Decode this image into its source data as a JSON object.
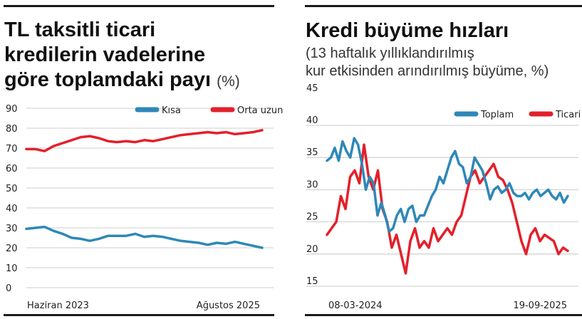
{
  "left_panel": {
    "title_lines": [
      "TL taksitli ticari",
      "kredilerin vadelerine",
      "göre toplamdaki payı"
    ],
    "title_unit": "(%)"
  },
  "right_panel": {
    "title": "Kredi büyüme hızları",
    "subtitle_lines": [
      "(13 haftalık yıllıklandırılmış",
      "kur etkisinden arındırılmış büyüme, %)"
    ]
  },
  "colors": {
    "blue": "#2e88b8",
    "red": "#e3202a",
    "grid": "#bdbdbd",
    "rule": "#1a1a1a"
  },
  "chart_data": [
    {
      "type": "line",
      "title": "TL taksitli ticari kredilerin vadelerine göre toplamdaki payı (%)",
      "xlabel": "",
      "ylabel": "",
      "ylim": [
        0,
        90
      ],
      "yticks": [
        0,
        10,
        20,
        30,
        40,
        50,
        60,
        70,
        80,
        90
      ],
      "x_labels": [
        "Haziran 2023",
        "Ağustos 2025"
      ],
      "x": [
        "2023-06",
        "2023-07",
        "2023-08",
        "2023-09",
        "2023-10",
        "2023-11",
        "2023-12",
        "2024-01",
        "2024-02",
        "2024-03",
        "2024-04",
        "2024-05",
        "2024-06",
        "2024-07",
        "2024-08",
        "2024-09",
        "2024-10",
        "2024-11",
        "2024-12",
        "2025-01",
        "2025-02",
        "2025-03",
        "2025-04",
        "2025-05",
        "2025-06",
        "2025-07",
        "2025-08"
      ],
      "legend_position": "top-right",
      "grid": true,
      "series": [
        {
          "name": "Kısa",
          "color": "#2e88b8",
          "values": [
            29.5,
            30,
            30.5,
            28.5,
            27,
            25,
            24.5,
            23.5,
            24.5,
            26,
            26,
            26,
            27,
            25.5,
            26,
            25.5,
            24.5,
            23.5,
            23,
            22.5,
            21.5,
            22.5,
            22,
            23,
            22,
            21,
            20
          ]
        },
        {
          "name": "Orta uzun",
          "color": "#e3202a",
          "values": [
            69.5,
            69.5,
            68.5,
            71,
            72.5,
            74,
            75.5,
            76,
            75,
            73.5,
            73,
            73.5,
            73,
            74,
            73.5,
            74.5,
            75.5,
            76.5,
            77,
            77.5,
            78,
            77.5,
            78,
            77,
            77.5,
            78,
            79
          ]
        }
      ]
    },
    {
      "type": "line",
      "title": "Kredi büyüme hızları",
      "subtitle": "(13 haftalık yıllıklandırılmış kur etkisinden arındırılmış büyüme, %)",
      "xlabel": "",
      "ylabel": "",
      "ylim": [
        13,
        45
      ],
      "yticks": [
        15,
        20,
        25,
        30,
        35,
        40,
        45
      ],
      "x_labels": [
        "08-03-2024",
        "19-09-2025"
      ],
      "x_start": "2024-03-08",
      "x_end": "2025-09-19",
      "legend_position": "top-right",
      "grid": true,
      "series": [
        {
          "name": "Toplam",
          "color": "#2e88b8",
          "values": [
            34.5,
            35,
            36.5,
            34.5,
            37.5,
            36,
            35,
            38,
            37,
            34,
            30,
            32,
            31,
            26,
            28,
            26,
            23.5,
            24,
            26,
            27,
            25,
            27,
            27.5,
            25,
            26,
            26,
            27.5,
            29,
            30,
            32,
            31,
            33,
            35,
            36,
            34,
            33.5,
            31,
            32,
            35,
            34,
            33,
            31,
            28.5,
            30,
            30.5,
            29.5,
            30,
            31,
            29.5,
            29,
            29,
            29.5,
            28.5,
            29.5,
            30,
            29,
            29.5,
            30,
            29,
            28.5,
            29.5,
            28,
            29
          ]
        },
        {
          "name": "Ticari",
          "color": "#e3202a",
          "values": [
            23,
            24,
            25,
            29,
            27,
            32,
            33,
            31,
            37,
            32,
            30,
            33,
            27,
            25,
            21,
            23,
            20,
            17,
            22,
            24,
            21,
            22,
            21,
            24,
            22,
            23,
            24,
            23,
            25,
            26,
            29,
            32,
            33,
            31,
            32,
            33,
            34,
            32,
            31.5,
            30,
            28,
            25,
            22,
            20,
            23,
            24,
            22,
            23,
            22.5,
            22,
            20,
            21,
            20.5
          ]
        }
      ]
    }
  ]
}
